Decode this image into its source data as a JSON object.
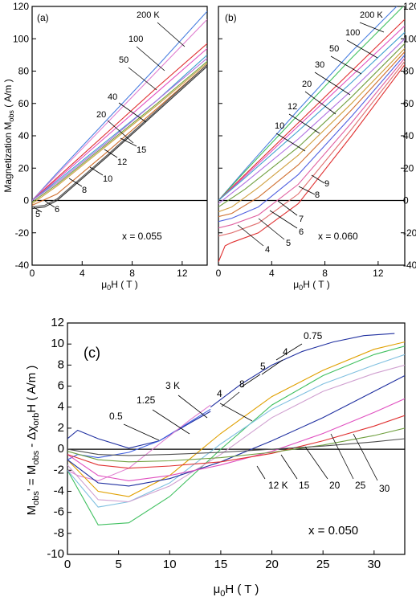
{
  "chart_data": [
    {
      "id": "a",
      "type": "line",
      "panel_label": "(a)",
      "annotation": "x = 0.055",
      "xlabel": "μ0H ( T )",
      "ylabel": "Magnetization Mobs ( A/m )",
      "xlim": [
        0,
        14
      ],
      "ylim": [
        -40,
        120
      ],
      "x_ticks": [
        0,
        4,
        8,
        12
      ],
      "y_ticks": [
        -40,
        -20,
        0,
        20,
        40,
        60,
        80,
        100,
        120
      ],
      "curve_labels": [
        "200 K",
        "100",
        "50",
        "40",
        "20",
        "15",
        "12",
        "10",
        "8",
        "6",
        "5"
      ],
      "series": [
        {
          "name": "200 K",
          "color": "#4a7fe0",
          "x": [
            0,
            2,
            6,
            10,
            14
          ],
          "y": [
            0,
            17,
            50,
            83,
            117
          ]
        },
        {
          "name": "100",
          "color": "#e07fd0",
          "x": [
            0,
            2,
            6,
            10,
            14
          ],
          "y": [
            0,
            16,
            48,
            80,
            112
          ]
        },
        {
          "name": "50",
          "color": "#e03030",
          "x": [
            0,
            2,
            6,
            10,
            14
          ],
          "y": [
            0,
            14,
            42,
            70,
            97
          ]
        },
        {
          "name": "40",
          "color": "#e050c0",
          "x": [
            0,
            2,
            6,
            10,
            14
          ],
          "y": [
            0,
            13,
            40,
            67,
            94
          ]
        },
        {
          "name": "20",
          "color": "#40a0d0",
          "x": [
            0,
            2,
            6,
            10,
            14
          ],
          "y": [
            0,
            12,
            37,
            62,
            90
          ]
        },
        {
          "name": "15",
          "color": "#b070e0",
          "x": [
            0,
            2,
            6,
            10,
            14
          ],
          "y": [
            0,
            11,
            36,
            62,
            88
          ]
        },
        {
          "name": "12",
          "color": "#70a040",
          "x": [
            0,
            2,
            6,
            10,
            14
          ],
          "y": [
            -1,
            10,
            35,
            60,
            86
          ]
        },
        {
          "name": "10",
          "color": "#d0a040",
          "x": [
            0,
            2,
            6,
            10,
            14
          ],
          "y": [
            -2,
            9,
            34,
            59,
            85
          ]
        },
        {
          "name": "8",
          "color": "#d07030",
          "x": [
            0,
            2,
            6,
            10,
            14
          ],
          "y": [
            -3,
            4,
            30,
            57,
            84
          ]
        },
        {
          "name": "6",
          "color": "#505050",
          "x": [
            0,
            1,
            2,
            6,
            10,
            14
          ],
          "y": [
            -4,
            -3,
            1,
            28,
            56,
            84
          ]
        },
        {
          "name": "5",
          "color": "#303030",
          "x": [
            0,
            1,
            2,
            6,
            10,
            14
          ],
          "y": [
            -5,
            -4,
            0,
            27,
            55,
            83
          ]
        }
      ]
    },
    {
      "id": "b",
      "type": "line",
      "panel_label": "(b)",
      "annotation": "x = 0.060",
      "xlabel": "μ0H ( T )",
      "ylabel": "",
      "xlim": [
        0,
        14
      ],
      "ylim": [
        -40,
        120
      ],
      "x_ticks": [
        0,
        4,
        8,
        12
      ],
      "y_ticks": [
        -40,
        -20,
        0,
        20,
        40,
        60,
        80,
        100,
        120
      ],
      "curve_labels": [
        "200 K",
        "100",
        "50",
        "30",
        "20",
        "12",
        "10",
        "9",
        "8",
        "7",
        "6",
        "5",
        "4"
      ],
      "series": [
        {
          "name": "200 K",
          "color": "#4a7fe0",
          "x": [
            0,
            2,
            6,
            10,
            14
          ],
          "y": [
            0,
            19,
            56,
            92,
            125
          ]
        },
        {
          "name": "100",
          "color": "#40c060",
          "x": [
            0,
            2,
            6,
            10,
            14
          ],
          "y": [
            0,
            18,
            53,
            88,
            121
          ]
        },
        {
          "name": "50",
          "color": "#e03030",
          "x": [
            0,
            2,
            6,
            10,
            14
          ],
          "y": [
            0,
            16,
            48,
            80,
            112
          ]
        },
        {
          "name": "30",
          "color": "#e050c0",
          "x": [
            0,
            2,
            6,
            10,
            14
          ],
          "y": [
            0,
            15,
            46,
            77,
            108
          ]
        },
        {
          "name": "20",
          "color": "#40a0d0",
          "x": [
            0,
            2,
            6,
            10,
            14
          ],
          "y": [
            0,
            14,
            43,
            73,
            104
          ]
        },
        {
          "name": "12",
          "color": "#b070e0",
          "x": [
            0,
            2,
            6,
            10,
            14
          ],
          "y": [
            -2,
            11,
            38,
            68,
            100
          ]
        },
        {
          "name": "10",
          "color": "#70a040",
          "x": [
            0,
            2,
            6,
            10,
            14
          ],
          "y": [
            -4,
            7,
            33,
            64,
            97
          ]
        },
        {
          "name": "9",
          "color": "#d0a040",
          "x": [
            0,
            1,
            3,
            6,
            10,
            14
          ],
          "y": [
            -7,
            -4,
            8,
            28,
            60,
            94
          ]
        },
        {
          "name": "8",
          "color": "#d07030",
          "x": [
            0,
            1,
            3,
            6,
            10,
            14
          ],
          "y": [
            -10,
            -8,
            2,
            22,
            56,
            92
          ]
        },
        {
          "name": "7",
          "color": "#5060e0",
          "x": [
            0,
            1,
            3,
            6,
            10,
            14
          ],
          "y": [
            -13,
            -11,
            -4,
            16,
            52,
            90
          ]
        },
        {
          "name": "6",
          "color": "#e060a0",
          "x": [
            0,
            1,
            3,
            6,
            10,
            14
          ],
          "y": [
            -17,
            -15,
            -9,
            10,
            48,
            88
          ]
        },
        {
          "name": "5",
          "color": "#e07070",
          "x": [
            0,
            1,
            3,
            6,
            10,
            14
          ],
          "y": [
            -22,
            -20,
            -14,
            4,
            44,
            86
          ]
        },
        {
          "name": "4",
          "color": "#e03030",
          "x": [
            0,
            0.5,
            1,
            3,
            6,
            10,
            14
          ],
          "y": [
            -38,
            -28,
            -26,
            -20,
            -2,
            40,
            84
          ]
        }
      ]
    },
    {
      "id": "c",
      "type": "line",
      "panel_label": "(c)",
      "annotation": "x = 0.050",
      "xlabel": "μ0H ( T )",
      "ylabel": "Mobs' = Mobs - Δχorb H ( A/m )",
      "xlim": [
        0,
        33
      ],
      "ylim": [
        -10,
        12
      ],
      "x_ticks": [
        0,
        5,
        10,
        15,
        20,
        25,
        30
      ],
      "y_ticks": [
        -10,
        -8,
        -6,
        -4,
        -2,
        0,
        2,
        4,
        6,
        8,
        10,
        12
      ],
      "curve_labels": [
        "0.75",
        "4",
        "5",
        "8",
        "4",
        "3 K",
        "1.25",
        "0.5",
        "12 K",
        "15",
        "20",
        "25",
        "30"
      ],
      "series": [
        {
          "name": "0.5",
          "color": "#2030a0",
          "x": [
            0,
            1,
            3,
            6,
            9,
            12,
            14
          ],
          "y": [
            1,
            1.8,
            1,
            0.1,
            0.8,
            2.5,
            3.6
          ]
        },
        {
          "name": "1.25",
          "color": "#4060e0",
          "x": [
            0,
            1,
            3,
            6,
            9,
            12,
            14
          ],
          "y": [
            -1,
            -0.5,
            -0.8,
            -0.3,
            0.8,
            2.6,
            3.8
          ]
        },
        {
          "name": "3 K",
          "color": "#e07fd0",
          "x": [
            0,
            1,
            3,
            6,
            9,
            12,
            14
          ],
          "y": [
            -2,
            -2.5,
            -3,
            -1.8,
            0.5,
            2.8,
            4.2
          ]
        },
        {
          "name": "0.75",
          "color": "#2030a0",
          "x": [
            14,
            17,
            20,
            23,
            26,
            29,
            32
          ],
          "y": [
            4,
            6.2,
            8,
            9.3,
            10.2,
            10.8,
            11
          ]
        },
        {
          "name": "4",
          "color": "#e0a000",
          "x": [
            0,
            3,
            6,
            10,
            15,
            20,
            25,
            30,
            33
          ],
          "y": [
            -1,
            -4,
            -4.5,
            -2.5,
            1.5,
            5,
            7.5,
            9.5,
            10.2
          ]
        },
        {
          "name": "5",
          "color": "#40c060",
          "x": [
            0,
            3,
            6,
            10,
            15,
            20,
            25,
            30,
            33
          ],
          "y": [
            -2,
            -7.2,
            -7,
            -4.5,
            0,
            4.2,
            7,
            9,
            9.8
          ]
        },
        {
          "name": "8",
          "color": "#80c0e0",
          "x": [
            0,
            3,
            6,
            10,
            15,
            20,
            25,
            30,
            33
          ],
          "y": [
            -2,
            -5.5,
            -5,
            -3.2,
            0.5,
            3.8,
            6.2,
            8,
            9
          ]
        },
        {
          "name": "4 ",
          "color": "#d0a0d0",
          "x": [
            0,
            3,
            6,
            10,
            15,
            20,
            25,
            30,
            33
          ],
          "y": [
            -1.5,
            -4.8,
            -5,
            -3.5,
            -0.5,
            3,
            5.5,
            7.2,
            8
          ]
        },
        {
          "name": "12 K",
          "color": "#2030a0",
          "x": [
            0,
            3,
            6,
            10,
            15,
            20,
            25,
            30,
            33
          ],
          "y": [
            -1,
            -3.2,
            -3.5,
            -2.8,
            -1.2,
            0.8,
            3,
            5.5,
            7
          ]
        },
        {
          "name": "15",
          "color": "#e050c0",
          "x": [
            0,
            3,
            6,
            10,
            15,
            20,
            25,
            30,
            33
          ],
          "y": [
            -0.5,
            -2.5,
            -3,
            -2.5,
            -1.5,
            -0.2,
            1.5,
            3.5,
            4.8
          ]
        },
        {
          "name": "20",
          "color": "#e03030",
          "x": [
            0,
            3,
            6,
            10,
            15,
            20,
            25,
            30,
            33
          ],
          "y": [
            -0.5,
            -1.5,
            -1.8,
            -1.6,
            -1.2,
            -0.4,
            0.8,
            2.2,
            3.2
          ]
        },
        {
          "name": "25",
          "color": "#70a040",
          "x": [
            0,
            3,
            6,
            10,
            15,
            20,
            25,
            30,
            33
          ],
          "y": [
            -0.2,
            -1,
            -1.2,
            -1.1,
            -0.8,
            -0.3,
            0.4,
            1.3,
            2
          ]
        },
        {
          "name": "30",
          "color": "#505050",
          "x": [
            0,
            3,
            6,
            10,
            15,
            20,
            25,
            30,
            33
          ],
          "y": [
            0,
            -0.5,
            -0.6,
            -0.5,
            -0.3,
            0,
            0.3,
            0.7,
            1
          ]
        }
      ]
    }
  ]
}
